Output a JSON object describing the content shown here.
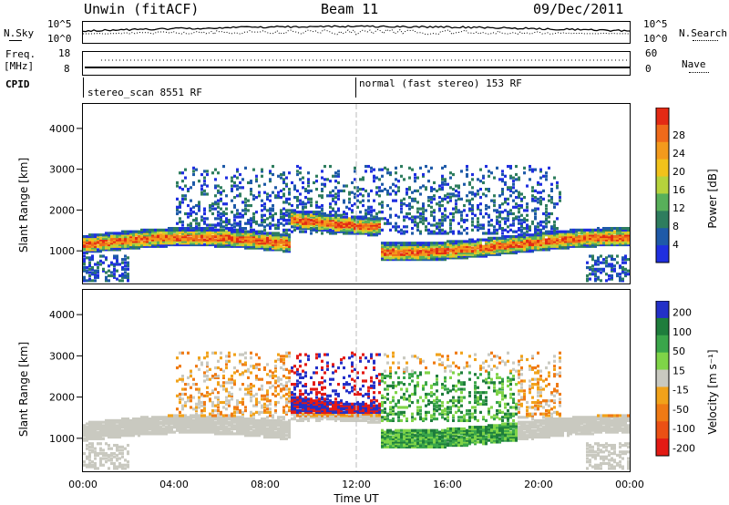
{
  "header": {
    "station": "Unwin (fitACF)",
    "beam": "Beam 11",
    "date": "09/Dec/2011"
  },
  "top_panels": {
    "nsky_label": "N.Sky",
    "nsky_ticks": [
      "10^5",
      "10^0"
    ],
    "nsearch_label": "N.Search",
    "nsearch_ticks": [
      "10^5",
      "10^0"
    ],
    "freq_label": "Freq.",
    "freq_unit": "[MHz]",
    "freq_ticks": [
      "18",
      "8"
    ],
    "nave_label": "Nave",
    "nave_ticks": [
      "60",
      "0"
    ],
    "cpid_label": "CPID",
    "cpid_segments": [
      "stereo_scan 8551 RF",
      "normal (fast stereo) 153 RF"
    ]
  },
  "chart_data": [
    {
      "type": "heatmap",
      "name": "power",
      "ylabel": "Slant Range [km]",
      "xlabel": "",
      "x_ticks": [
        "00:00",
        "04:00",
        "08:00",
        "12:00",
        "16:00",
        "20:00",
        "00:00"
      ],
      "x_range_hours": [
        0,
        24
      ],
      "y_ticks": [
        1000,
        2000,
        3000,
        4000
      ],
      "ylim": [
        200,
        4600
      ],
      "colorbar_label": "Power [dB]",
      "colorbar_ticks": [
        4,
        8,
        12,
        16,
        20,
        24,
        28
      ],
      "colorbar_colors": [
        "#1f2fe0",
        "#1e5aa8",
        "#2e7d5e",
        "#58b05a",
        "#b6d33c",
        "#f1c21b",
        "#f39a1c",
        "#ef6a1a",
        "#e32a14"
      ]
    },
    {
      "type": "heatmap",
      "name": "velocity",
      "ylabel": "Slant Range [km]",
      "xlabel": "Time UT",
      "x_ticks": [
        "00:00",
        "04:00",
        "08:00",
        "12:00",
        "16:00",
        "20:00",
        "00:00"
      ],
      "x_range_hours": [
        0,
        24
      ],
      "y_ticks": [
        1000,
        2000,
        3000,
        4000
      ],
      "ylim": [
        200,
        4600
      ],
      "colorbar_label": "Velocity [m s⁻¹]",
      "colorbar_ticks": [
        200,
        100,
        50,
        15,
        -15,
        -50,
        -100,
        -200
      ],
      "colorbar_colors": [
        "#2330c8",
        "#1e7d3c",
        "#3aa64a",
        "#7fd448",
        "#c9c9c0",
        "#f1a21a",
        "#ef7a14",
        "#eb5014",
        "#e31a14"
      ]
    }
  ]
}
